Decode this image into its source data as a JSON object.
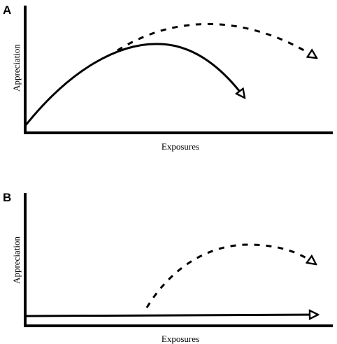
{
  "panels": [
    {
      "letter": "A",
      "ylabel": "Appreciation",
      "xlabel": "Exposures"
    },
    {
      "letter": "B",
      "ylabel": "Appreciation",
      "xlabel": "Exposures"
    }
  ],
  "colors": {
    "ink": "#000000",
    "background": "#ffffff"
  }
}
